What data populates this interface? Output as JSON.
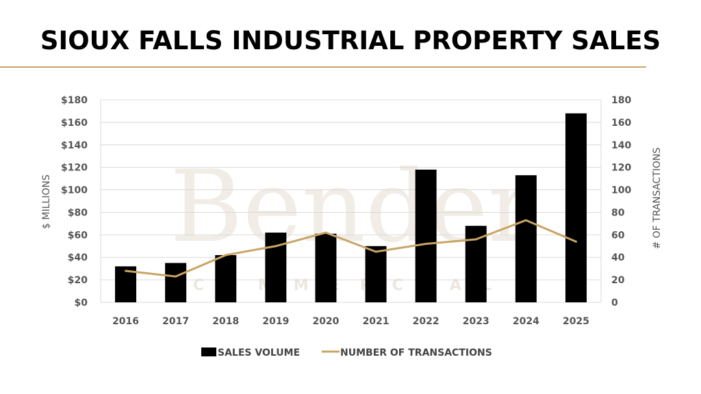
{
  "title": "SIOUX FALLS INDUSTRIAL PROPERTY SALES",
  "watermark": {
    "main": "Bender",
    "sub": "COMMERCIAL"
  },
  "colors": {
    "bar": "#000000",
    "line": "#c9a465",
    "rule": "#c9a465",
    "grid": "#d9d9d9"
  },
  "chart_data": {
    "type": "bar+line",
    "categories": [
      "2016",
      "2017",
      "2018",
      "2019",
      "2020",
      "2021",
      "2022",
      "2023",
      "2024",
      "2025"
    ],
    "series": [
      {
        "name": "SALES VOLUME",
        "type": "bar",
        "axis": "left",
        "values": [
          32,
          35,
          42,
          62,
          61,
          50,
          118,
          68,
          113,
          168
        ]
      },
      {
        "name": "NUMBER OF TRANSACTIONS",
        "type": "line",
        "axis": "right",
        "values": [
          28,
          23,
          42,
          50,
          62,
          45,
          52,
          56,
          73,
          54
        ]
      }
    ],
    "ylabel": "$ MILLIONS",
    "y2label": "# OF TRANSACTIONS",
    "ylim": [
      0,
      180
    ],
    "y2lim": [
      0,
      180
    ],
    "yticks": [
      "$0",
      "$20",
      "$40",
      "$60",
      "$80",
      "$100",
      "$120",
      "$140",
      "$160",
      "$180"
    ],
    "y2ticks": [
      "0",
      "20",
      "40",
      "60",
      "80",
      "100",
      "120",
      "140",
      "160",
      "180"
    ],
    "grid": true,
    "legend": "bottom"
  }
}
